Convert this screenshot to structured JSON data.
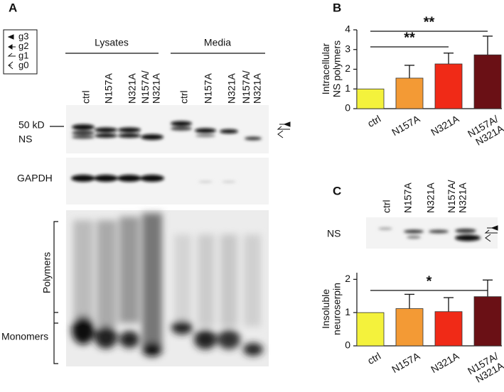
{
  "panel_a": {
    "label": "A",
    "legend": [
      "g3",
      "g2",
      "g1",
      "g0"
    ],
    "groups": [
      "Lysates",
      "Media"
    ],
    "lanes": [
      "ctrl",
      "N157A",
      "N321A",
      "N157A/\nN321A",
      "ctrl",
      "N157A",
      "N321A",
      "N157A/\nN321A"
    ],
    "marker": "50 kD",
    "blot_labels": [
      "NS",
      "GAPDH",
      "Polymers",
      "Monomers"
    ]
  },
  "panel_c_blot": {
    "lanes": [
      "ctrl",
      "N157A",
      "N321A",
      "N157A/\nN321A"
    ],
    "label": "NS"
  },
  "chart_data": [
    {
      "type": "bar",
      "label": "B",
      "y_label": "Intracellular\nNS polymers",
      "categories": [
        "ctrl",
        "N157A",
        "N321A",
        "N157A/\nN321A"
      ],
      "values": [
        1,
        1.55,
        2.27,
        2.73
      ],
      "errors": [
        0,
        0.65,
        0.55,
        0.95
      ],
      "colors": [
        "#f4f23c",
        "#f39a35",
        "#f02a17",
        "#6a1015"
      ],
      "ylim": [
        0,
        4
      ],
      "yticks": [
        0,
        1,
        2,
        3,
        4
      ],
      "annotations": [
        {
          "text": "**"
        },
        {
          "text": "**"
        }
      ]
    },
    {
      "type": "bar",
      "label": "C",
      "y_label": "Insoluble\nneuroserpin",
      "categories": [
        "ctrl",
        "N157A",
        "N321A",
        "N157A/\nN321A"
      ],
      "values": [
        1,
        1.12,
        1.03,
        1.48
      ],
      "errors": [
        0,
        0.43,
        0.42,
        0.5
      ],
      "colors": [
        "#f4f23c",
        "#f39a35",
        "#f02a17",
        "#6a1015"
      ],
      "ylim": [
        0,
        2.2
      ],
      "yticks": [
        0,
        1,
        2
      ],
      "annotations": [
        {
          "text": "*"
        }
      ]
    }
  ]
}
